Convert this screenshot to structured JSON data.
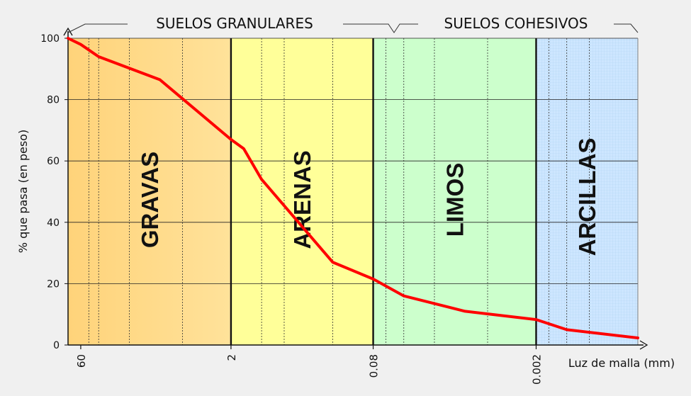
{
  "chart_data": {
    "type": "line",
    "title": "",
    "xlabel": "Luz de malla (mm)",
    "ylabel": "% que pasa (en peso)",
    "x_scale": "log",
    "x_direction": "decreasing",
    "xlim": [
      80,
      0.0002
    ],
    "ylim": [
      0,
      100
    ],
    "y_ticks": [
      "0",
      "20",
      "40",
      "60",
      "80",
      "100"
    ],
    "x_ticks": [
      {
        "value": 60,
        "label": "60"
      },
      {
        "value": 2,
        "label": "2"
      },
      {
        "value": 0.08,
        "label": "0.08"
      },
      {
        "value": 0.002,
        "label": "0.002"
      }
    ],
    "grid": true,
    "series": [
      {
        "name": "",
        "color": "#ff0000",
        "x": [
          80,
          60,
          40,
          10,
          2,
          1.5,
          1,
          0.2,
          0.08,
          0.04,
          0.01,
          0.002,
          0.001,
          0.0002
        ],
        "y": [
          100,
          98,
          94,
          86.5,
          67,
          64,
          54,
          27,
          21.5,
          16,
          11,
          8.3,
          5,
          2.3
        ]
      }
    ],
    "zones": [
      {
        "label": "GRAVAS",
        "from": 80,
        "to": 2,
        "color": "#ffd887"
      },
      {
        "label": "ARENAS",
        "from": 2,
        "to": 0.08,
        "color": "#ffff99"
      },
      {
        "label": "LIMOS",
        "from": 0.08,
        "to": 0.002,
        "color": "#ccffcc"
      },
      {
        "label": "ARCILLAS",
        "from": 0.002,
        "to": 0.0002,
        "color": "#cce5ff"
      }
    ],
    "groups": [
      {
        "label": "SUELOS GRANULARES"
      },
      {
        "label": "SUELOS COHESIVOS"
      }
    ]
  }
}
